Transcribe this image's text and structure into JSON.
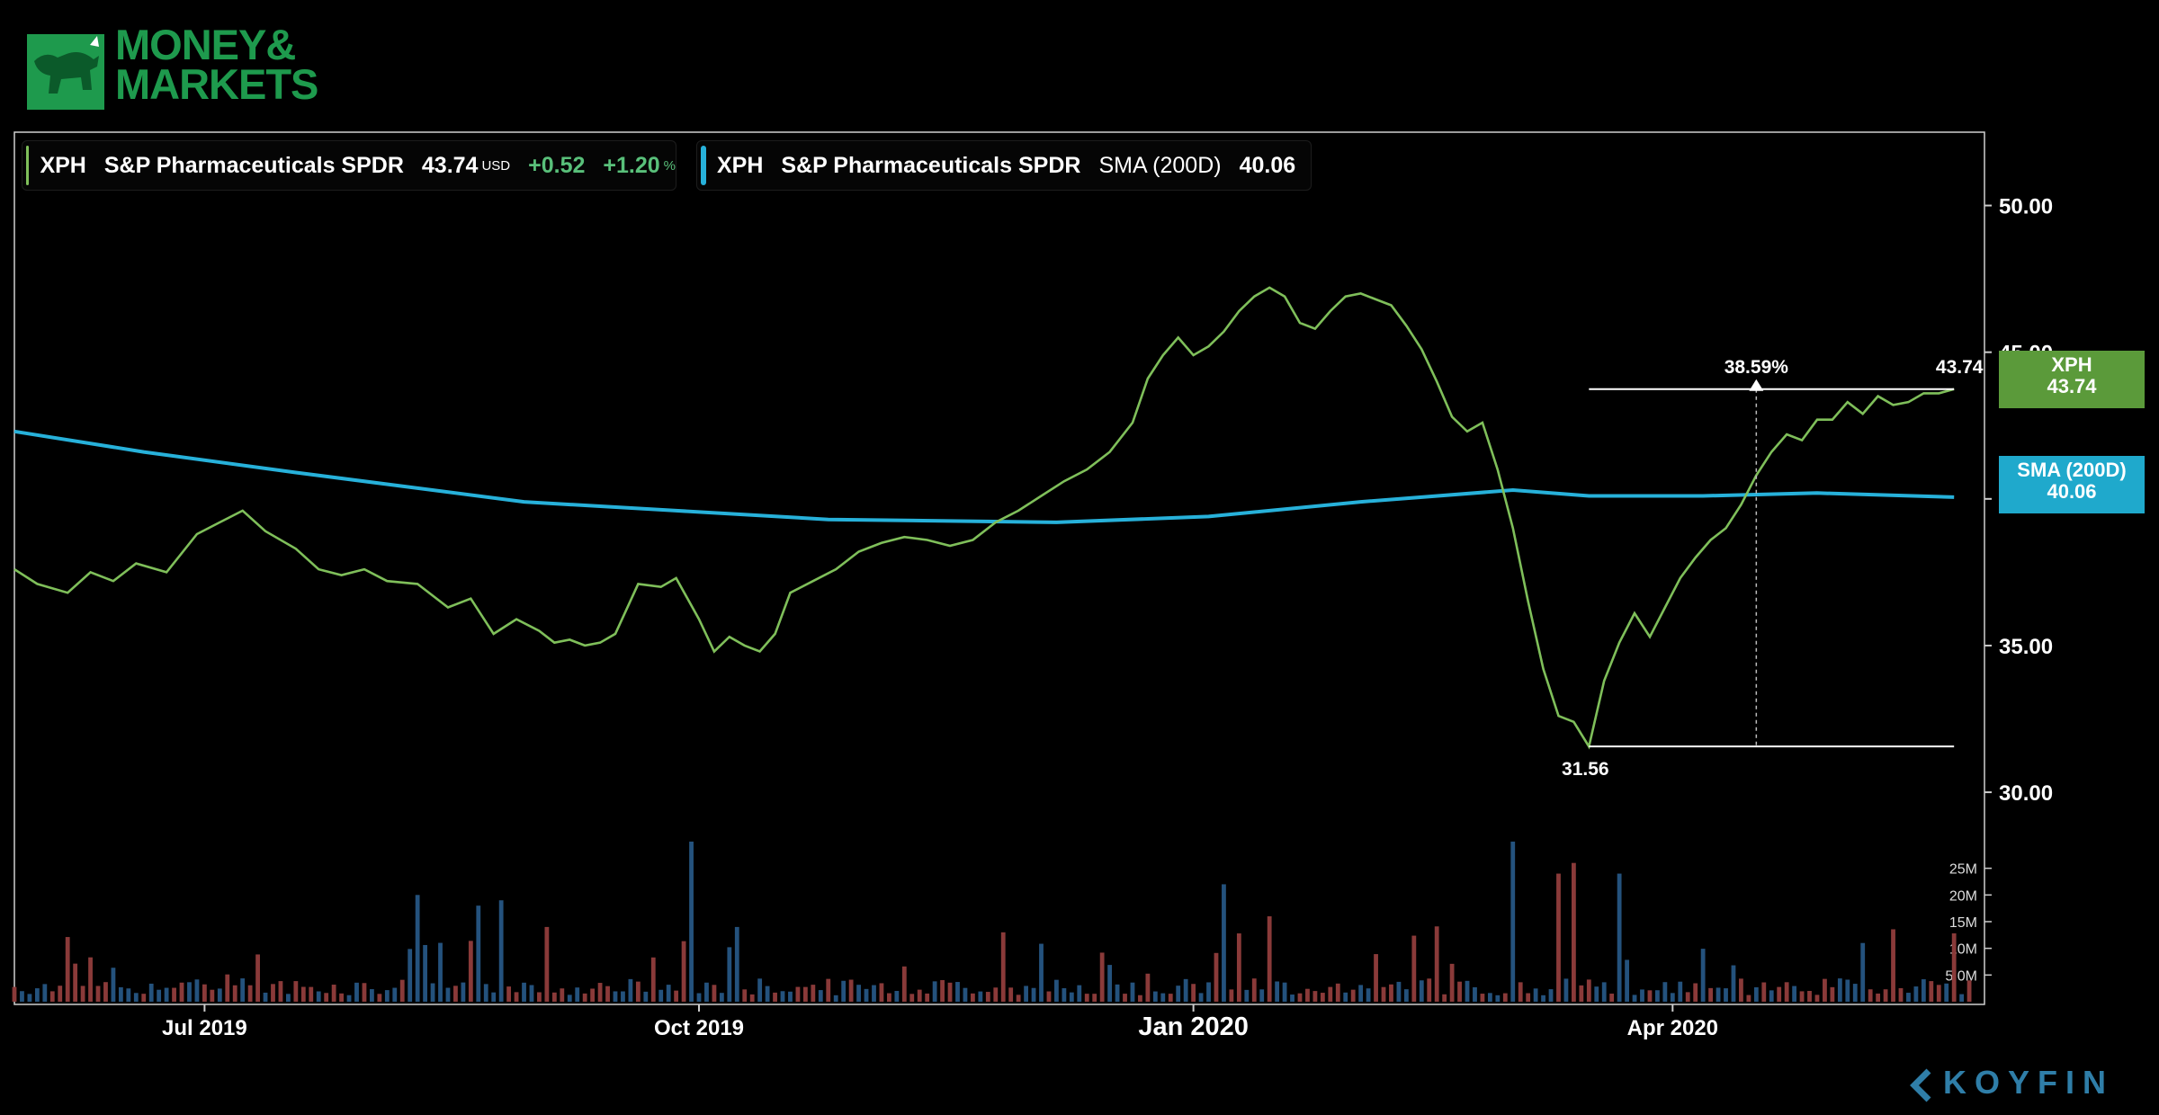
{
  "branding": {
    "logo_line1": "MONEY&",
    "logo_line2": "MARKETS",
    "watermark": "KOYFIN",
    "colors": {
      "logo_green": "#1e9a4d",
      "koyfin_blue": "#2f7ea8"
    }
  },
  "legend": {
    "price": {
      "ticker": "XPH",
      "name": "S&P Pharmaceuticals SPDR",
      "value": "43.74",
      "currency": "USD",
      "change": "+0.52",
      "change_pct": "+1.20",
      "pct_sign": "%"
    },
    "sma": {
      "ticker": "XPH",
      "name": "S&P Pharmaceuticals SPDR",
      "indicator": "SMA (200D)",
      "value": "40.06"
    }
  },
  "tags": {
    "price": {
      "label": "XPH",
      "value": "43.74"
    },
    "sma": {
      "label": "SMA (200D)",
      "value": "40.06"
    }
  },
  "chart_data": {
    "type": "line",
    "x_tick_labels": [
      "Jul 2019",
      "Oct 2019",
      "Jan 2020",
      "Apr 2020"
    ],
    "x_tick_positions": [
      18,
      83,
      148,
      211
    ],
    "x_range": [
      -7,
      252
    ],
    "ylim": [
      28.5,
      52.5
    ],
    "y_tick_labels": [
      "50.00",
      "45.00",
      "40.00",
      "35.00",
      "30.00"
    ],
    "y_ticks": [
      50,
      45,
      40,
      35,
      30
    ],
    "volume_tick_labels": [
      "25M",
      "20M",
      "15M",
      "10M",
      "5.0M"
    ],
    "volume_ticks": [
      25,
      20,
      15,
      10,
      5
    ],
    "volume_max": 31,
    "colors": {
      "price": "#7fbf5a",
      "sma": "#27b1da",
      "vol_up": "#24527d",
      "vol_down": "#8a3a39"
    },
    "series": [
      {
        "name": "XPH",
        "points": [
          [
            -7,
            37.6
          ],
          [
            -4,
            37.1
          ],
          [
            0,
            36.8
          ],
          [
            3,
            37.5
          ],
          [
            6,
            37.2
          ],
          [
            9,
            37.8
          ],
          [
            13,
            37.5
          ],
          [
            17,
            38.8
          ],
          [
            20,
            39.2
          ],
          [
            23,
            39.6
          ],
          [
            26,
            38.9
          ],
          [
            30,
            38.3
          ],
          [
            33,
            37.6
          ],
          [
            36,
            37.4
          ],
          [
            39,
            37.6
          ],
          [
            42,
            37.2
          ],
          [
            46,
            37.1
          ],
          [
            50,
            36.3
          ],
          [
            53,
            36.6
          ],
          [
            56,
            35.4
          ],
          [
            59,
            35.9
          ],
          [
            62,
            35.5
          ],
          [
            64,
            35.1
          ],
          [
            66,
            35.2
          ],
          [
            68,
            35.0
          ],
          [
            70,
            35.1
          ],
          [
            72,
            35.4
          ],
          [
            75,
            37.1
          ],
          [
            78,
            37.0
          ],
          [
            80,
            37.3
          ],
          [
            83,
            35.9
          ],
          [
            85,
            34.8
          ],
          [
            87,
            35.3
          ],
          [
            89,
            35.0
          ],
          [
            91,
            34.8
          ],
          [
            93,
            35.4
          ],
          [
            95,
            36.8
          ],
          [
            98,
            37.2
          ],
          [
            101,
            37.6
          ],
          [
            104,
            38.2
          ],
          [
            107,
            38.5
          ],
          [
            110,
            38.7
          ],
          [
            113,
            38.6
          ],
          [
            116,
            38.4
          ],
          [
            119,
            38.6
          ],
          [
            122,
            39.2
          ],
          [
            125,
            39.6
          ],
          [
            128,
            40.1
          ],
          [
            131,
            40.6
          ],
          [
            134,
            41.0
          ],
          [
            137,
            41.6
          ],
          [
            140,
            42.6
          ],
          [
            142,
            44.1
          ],
          [
            144,
            44.9
          ],
          [
            146,
            45.5
          ],
          [
            148,
            44.9
          ],
          [
            150,
            45.2
          ],
          [
            152,
            45.7
          ],
          [
            154,
            46.4
          ],
          [
            156,
            46.9
          ],
          [
            158,
            47.2
          ],
          [
            160,
            46.9
          ],
          [
            162,
            46.0
          ],
          [
            164,
            45.8
          ],
          [
            166,
            46.4
          ],
          [
            168,
            46.9
          ],
          [
            170,
            47.0
          ],
          [
            172,
            46.8
          ],
          [
            174,
            46.6
          ],
          [
            176,
            45.9
          ],
          [
            178,
            45.1
          ],
          [
            180,
            44.0
          ],
          [
            182,
            42.8
          ],
          [
            184,
            42.3
          ],
          [
            186,
            42.6
          ],
          [
            188,
            41.0
          ],
          [
            190,
            39.0
          ],
          [
            192,
            36.5
          ],
          [
            194,
            34.2
          ],
          [
            196,
            32.6
          ],
          [
            198,
            32.4
          ],
          [
            200,
            31.56
          ],
          [
            202,
            33.8
          ],
          [
            204,
            35.1
          ],
          [
            206,
            36.1
          ],
          [
            208,
            35.3
          ],
          [
            210,
            36.3
          ],
          [
            212,
            37.3
          ],
          [
            214,
            38.0
          ],
          [
            216,
            38.6
          ],
          [
            218,
            39.0
          ],
          [
            220,
            39.8
          ],
          [
            222,
            40.8
          ],
          [
            224,
            41.6
          ],
          [
            226,
            42.2
          ],
          [
            228,
            42.0
          ],
          [
            230,
            42.7
          ],
          [
            232,
            42.7
          ],
          [
            234,
            43.3
          ],
          [
            236,
            42.9
          ],
          [
            238,
            43.5
          ],
          [
            240,
            43.2
          ],
          [
            242,
            43.3
          ],
          [
            244,
            43.6
          ],
          [
            246,
            43.6
          ],
          [
            248,
            43.74
          ]
        ]
      },
      {
        "name": "SMA (200D)",
        "points": [
          [
            -7,
            42.3
          ],
          [
            10,
            41.6
          ],
          [
            30,
            40.9
          ],
          [
            60,
            39.9
          ],
          [
            80,
            39.6
          ],
          [
            100,
            39.3
          ],
          [
            130,
            39.2
          ],
          [
            150,
            39.4
          ],
          [
            170,
            39.9
          ],
          [
            190,
            40.3
          ],
          [
            200,
            40.1
          ],
          [
            215,
            40.1
          ],
          [
            230,
            40.2
          ],
          [
            248,
            40.06
          ]
        ]
      }
    ],
    "annotation": {
      "low": 31.56,
      "high": 43.74,
      "low_label": "31.56",
      "high_label": "43.74",
      "pct_label": "38.59%",
      "x_start": 200,
      "x_end": 248,
      "x_marker": 222
    },
    "volume_seed": 7
  }
}
